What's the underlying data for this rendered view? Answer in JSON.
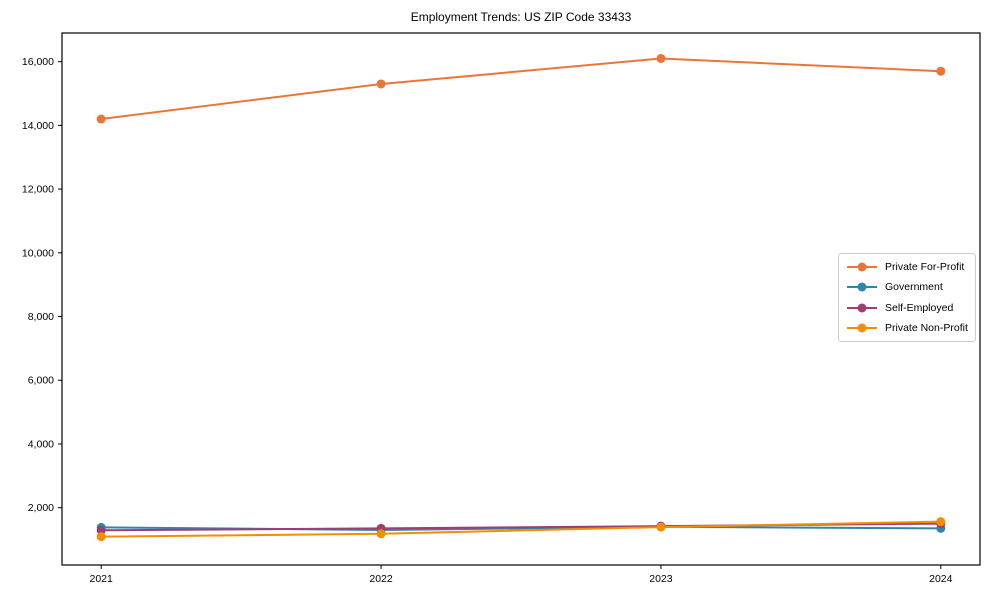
{
  "title": "Employment Trends: US ZIP Code 33433",
  "chart_data": {
    "type": "line",
    "title": "Employment Trends: US ZIP Code 33433",
    "x": [
      2021,
      2022,
      2023,
      2024
    ],
    "x_tick_labels": [
      "2021",
      "2022",
      "2023",
      "2024"
    ],
    "series": [
      {
        "name": "Private For-Profit",
        "color": "#E8763B",
        "values": [
          14200,
          15300,
          16100,
          15700
        ]
      },
      {
        "name": "Government",
        "color": "#2E86AB",
        "values": [
          1380,
          1300,
          1400,
          1350
        ]
      },
      {
        "name": "Self-Employed",
        "color": "#A23B72",
        "values": [
          1290,
          1350,
          1420,
          1500
        ]
      },
      {
        "name": "Private Non-Profit",
        "color": "#F18F01",
        "values": [
          1090,
          1180,
          1390,
          1560
        ]
      }
    ],
    "y_ticks": [
      2000,
      4000,
      6000,
      8000,
      10000,
      12000,
      14000,
      16000
    ],
    "y_tick_labels": [
      "2,000",
      "4,000",
      "6,000",
      "8,000",
      "10,000",
      "12,000",
      "14,000",
      "16,000"
    ],
    "ylim": [
      200,
      16900
    ],
    "x_margin": 0.14,
    "grid": false,
    "legend_position": "center right",
    "marker": "circle",
    "line_width": 2,
    "marker_radius": 4.5,
    "axis_color": "#000000",
    "background_color": "#ffffff",
    "legend_border_color": "#cccccc"
  }
}
